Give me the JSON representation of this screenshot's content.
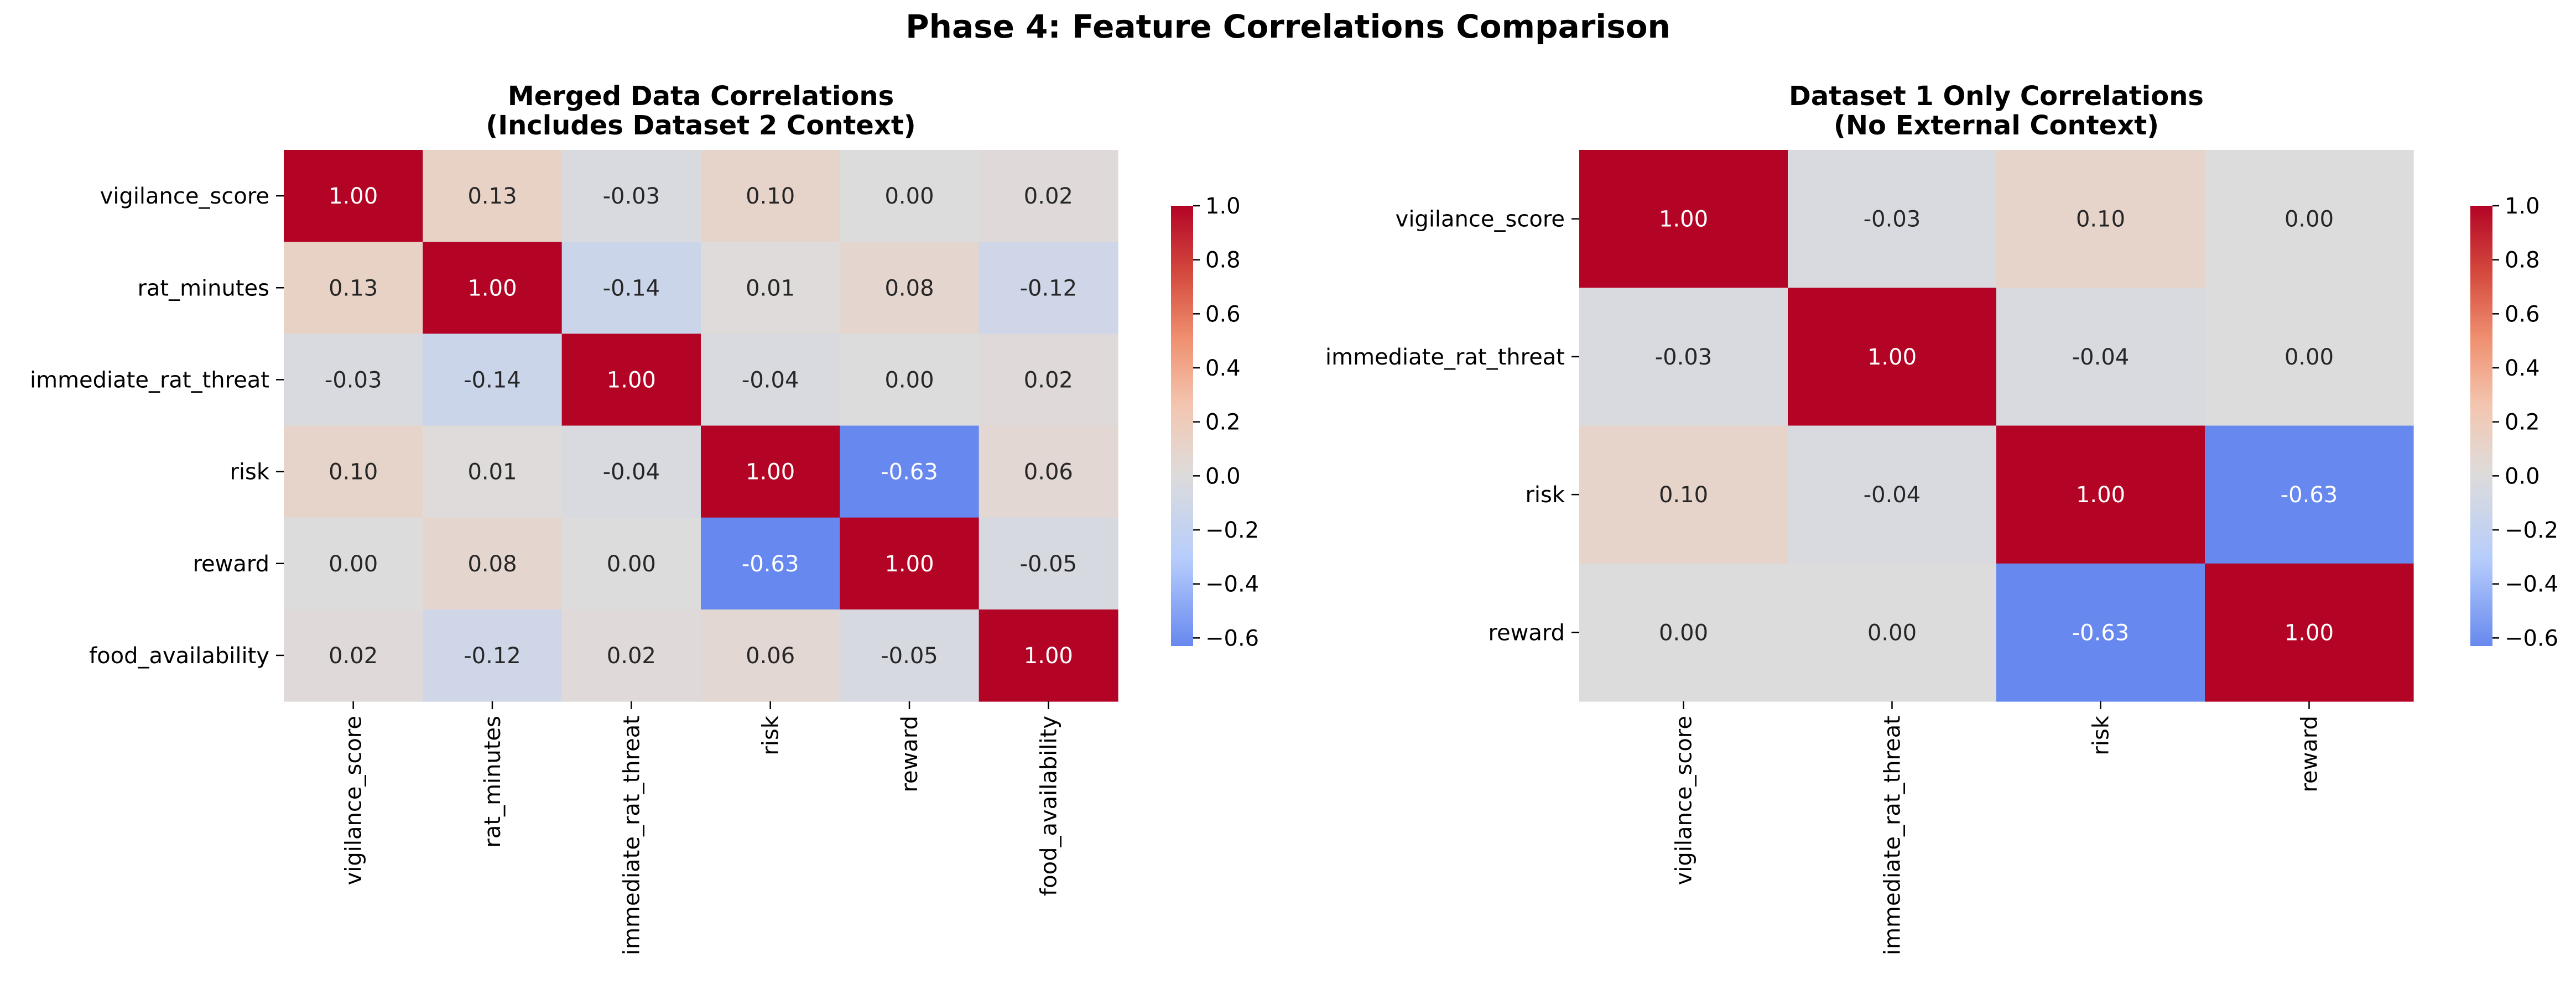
{
  "title": "Phase 4: Feature Correlations Comparison",
  "colorscale": {
    "name": "coolwarm",
    "low": "#6788ee",
    "mid": "#dddcdc",
    "high": "#b40426"
  },
  "chart_data": [
    {
      "type": "heatmap",
      "title_lines": [
        "Merged Data Correlations",
        "(Includes Dataset 2 Context)"
      ],
      "rows": [
        "vigilance_score",
        "rat_minutes",
        "immediate_rat_threat",
        "risk",
        "reward",
        "food_availability"
      ],
      "cols": [
        "vigilance_score",
        "rat_minutes",
        "immediate_rat_threat",
        "risk",
        "reward",
        "food_availability"
      ],
      "values": [
        [
          1.0,
          0.13,
          -0.03,
          0.1,
          0.0,
          0.02
        ],
        [
          0.13,
          1.0,
          -0.14,
          0.01,
          0.08,
          -0.12
        ],
        [
          -0.03,
          -0.14,
          1.0,
          -0.04,
          0.0,
          0.02
        ],
        [
          0.1,
          0.01,
          -0.04,
          1.0,
          -0.63,
          0.06
        ],
        [
          0.0,
          0.08,
          0.0,
          -0.63,
          1.0,
          -0.05
        ],
        [
          0.02,
          -0.12,
          0.02,
          0.06,
          -0.05,
          1.0
        ]
      ],
      "colorbar": {
        "range": [
          -0.63,
          1.0
        ],
        "ticks": [
          -0.6,
          -0.4,
          -0.2,
          0.0,
          0.2,
          0.4,
          0.6,
          0.8,
          1.0
        ],
        "tick_labels": [
          "−0.6",
          "−0.4",
          "−0.2",
          "0.0",
          "0.2",
          "0.4",
          "0.6",
          "0.8",
          "1.0"
        ]
      }
    },
    {
      "type": "heatmap",
      "title_lines": [
        "Dataset 1 Only Correlations",
        "(No External Context)"
      ],
      "rows": [
        "vigilance_score",
        "immediate_rat_threat",
        "risk",
        "reward"
      ],
      "cols": [
        "vigilance_score",
        "immediate_rat_threat",
        "risk",
        "reward"
      ],
      "values": [
        [
          1.0,
          -0.03,
          0.1,
          0.0
        ],
        [
          -0.03,
          1.0,
          -0.04,
          0.0
        ],
        [
          0.1,
          -0.04,
          1.0,
          -0.63
        ],
        [
          0.0,
          0.0,
          -0.63,
          1.0
        ]
      ],
      "colorbar": {
        "range": [
          -0.63,
          1.0
        ],
        "ticks": [
          -0.6,
          -0.4,
          -0.2,
          0.0,
          0.2,
          0.4,
          0.6,
          0.8,
          1.0
        ],
        "tick_labels": [
          "−0.6",
          "−0.4",
          "−0.2",
          "0.0",
          "0.2",
          "0.4",
          "0.6",
          "0.8",
          "1.0"
        ]
      }
    }
  ]
}
